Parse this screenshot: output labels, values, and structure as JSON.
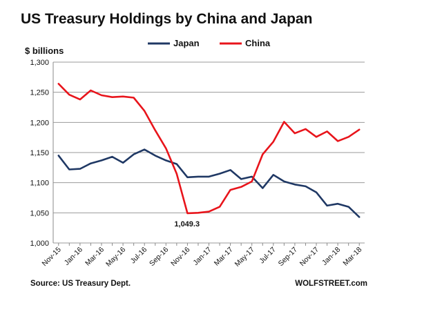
{
  "chart_data": {
    "type": "line",
    "title": "US Treasury Holdings by China and Japan",
    "ylabel": "$ billions",
    "ylim": [
      1000,
      1300
    ],
    "yticks": [
      "1,000",
      "1,050",
      "1,100",
      "1,150",
      "1,200",
      "1,250",
      "1,300"
    ],
    "ytick_values": [
      1000,
      1050,
      1100,
      1150,
      1200,
      1250,
      1300
    ],
    "x": [
      "Nov-15",
      "Dec-15",
      "Jan-16",
      "Feb-16",
      "Mar-16",
      "Apr-16",
      "May-16",
      "Jun-16",
      "Jul-16",
      "Aug-16",
      "Sep-16",
      "Oct-16",
      "Nov-16",
      "Dec-16",
      "Jan-17",
      "Feb-17",
      "Mar-17",
      "Apr-17",
      "May-17",
      "Jun-17",
      "Jul-17",
      "Aug-17",
      "Sep-17",
      "Oct-17",
      "Nov-17",
      "Dec-17",
      "Jan-18",
      "Feb-18",
      "Mar-18"
    ],
    "xtick_labels": [
      "Nov-15",
      "Jan-16",
      "Mar-16",
      "May-16",
      "Jul-16",
      "Sep-16",
      "Nov-16",
      "Jan-17",
      "Mar-17",
      "May-17",
      "Jul-17",
      "Sep-17",
      "Nov-17",
      "Jan-18",
      "Mar-18"
    ],
    "grid": "horizontal",
    "legend_position": "top-center",
    "series": [
      {
        "name": "Japan",
        "color": "#1f3864",
        "values": [
          1145,
          1122,
          1123,
          1132,
          1137,
          1143,
          1133,
          1147,
          1155,
          1145,
          1137,
          1131,
          1109,
          1110,
          1110,
          1115,
          1121,
          1106,
          1110,
          1091,
          1113,
          1102,
          1097,
          1094,
          1084,
          1062,
          1065,
          1060,
          1043
        ]
      },
      {
        "name": "China",
        "color": "#e8141b",
        "values": [
          1264,
          1246,
          1238,
          1253,
          1245,
          1242,
          1243,
          1241,
          1219,
          1187,
          1157,
          1115,
          1049.3,
          1050,
          1052,
          1060,
          1088,
          1093,
          1102,
          1147,
          1168,
          1201,
          1182,
          1189,
          1176,
          1185,
          1169,
          1176,
          1188
        ]
      }
    ],
    "annotations": [
      {
        "text": "1,049.3",
        "series": "China",
        "x": "Nov-16",
        "y": 1049.3
      }
    ]
  },
  "footer": {
    "source": "Source: US Treasury Dept.",
    "brand": "WOLFSTREET.com"
  }
}
